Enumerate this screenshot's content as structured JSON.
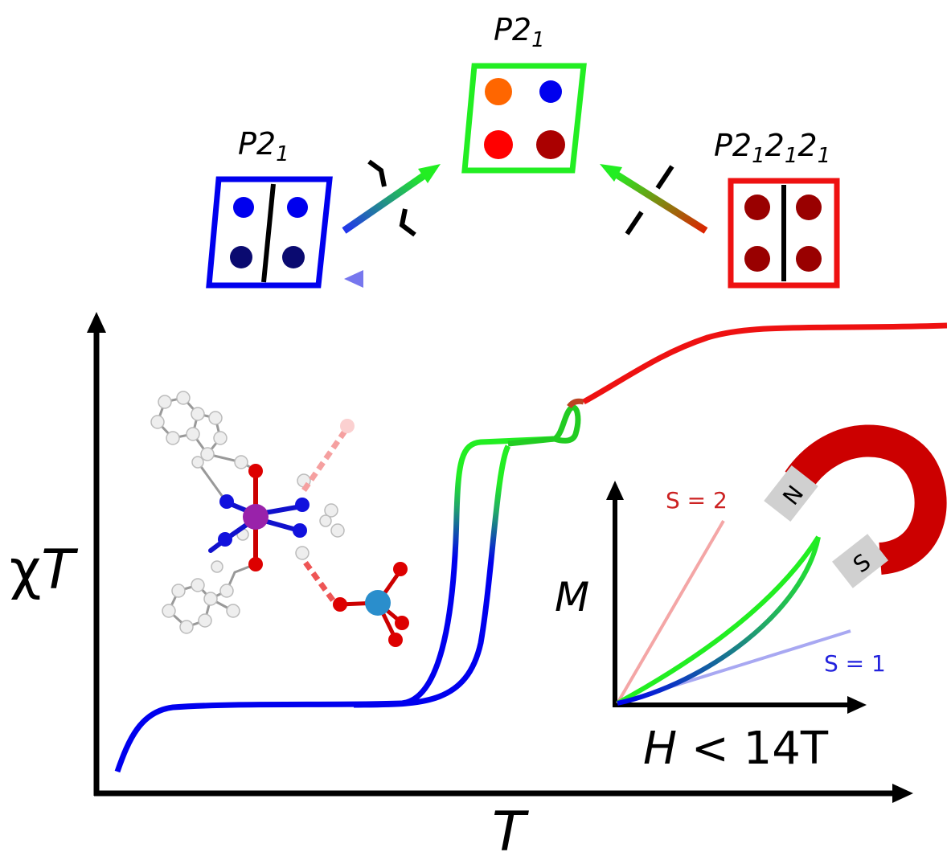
{
  "top_panel": {
    "left_phase": {
      "group": "P2",
      "sub": "1",
      "frame_color": "#0000ee"
    },
    "center_phase": {
      "group": "P2",
      "sub": "1",
      "frame_color": "#22ee22"
    },
    "right_phase": {
      "group": "P2",
      "sub1": "1",
      "mid1": "2",
      "sub2": "1",
      "mid2": "2",
      "sub3": "1",
      "frame_color": "#ee1111"
    }
  },
  "main_plot": {
    "ylabel_prefix": "χ",
    "ylabel_var": "T",
    "xlabel": "T"
  },
  "inset": {
    "ylabel": "M",
    "xlabel_var": "H",
    "xlabel_rest": " < 14T",
    "high_spin_label": "S = 2",
    "low_spin_label": "S = 1",
    "high_spin_color": "#cc2222",
    "low_spin_color": "#2222dd"
  },
  "magnet": {
    "north": "N",
    "south": "S",
    "color": "#cc0000"
  },
  "colors": {
    "low_state": "#0000ee",
    "mid_state": "#22ee22",
    "high_state": "#ee1111"
  }
}
